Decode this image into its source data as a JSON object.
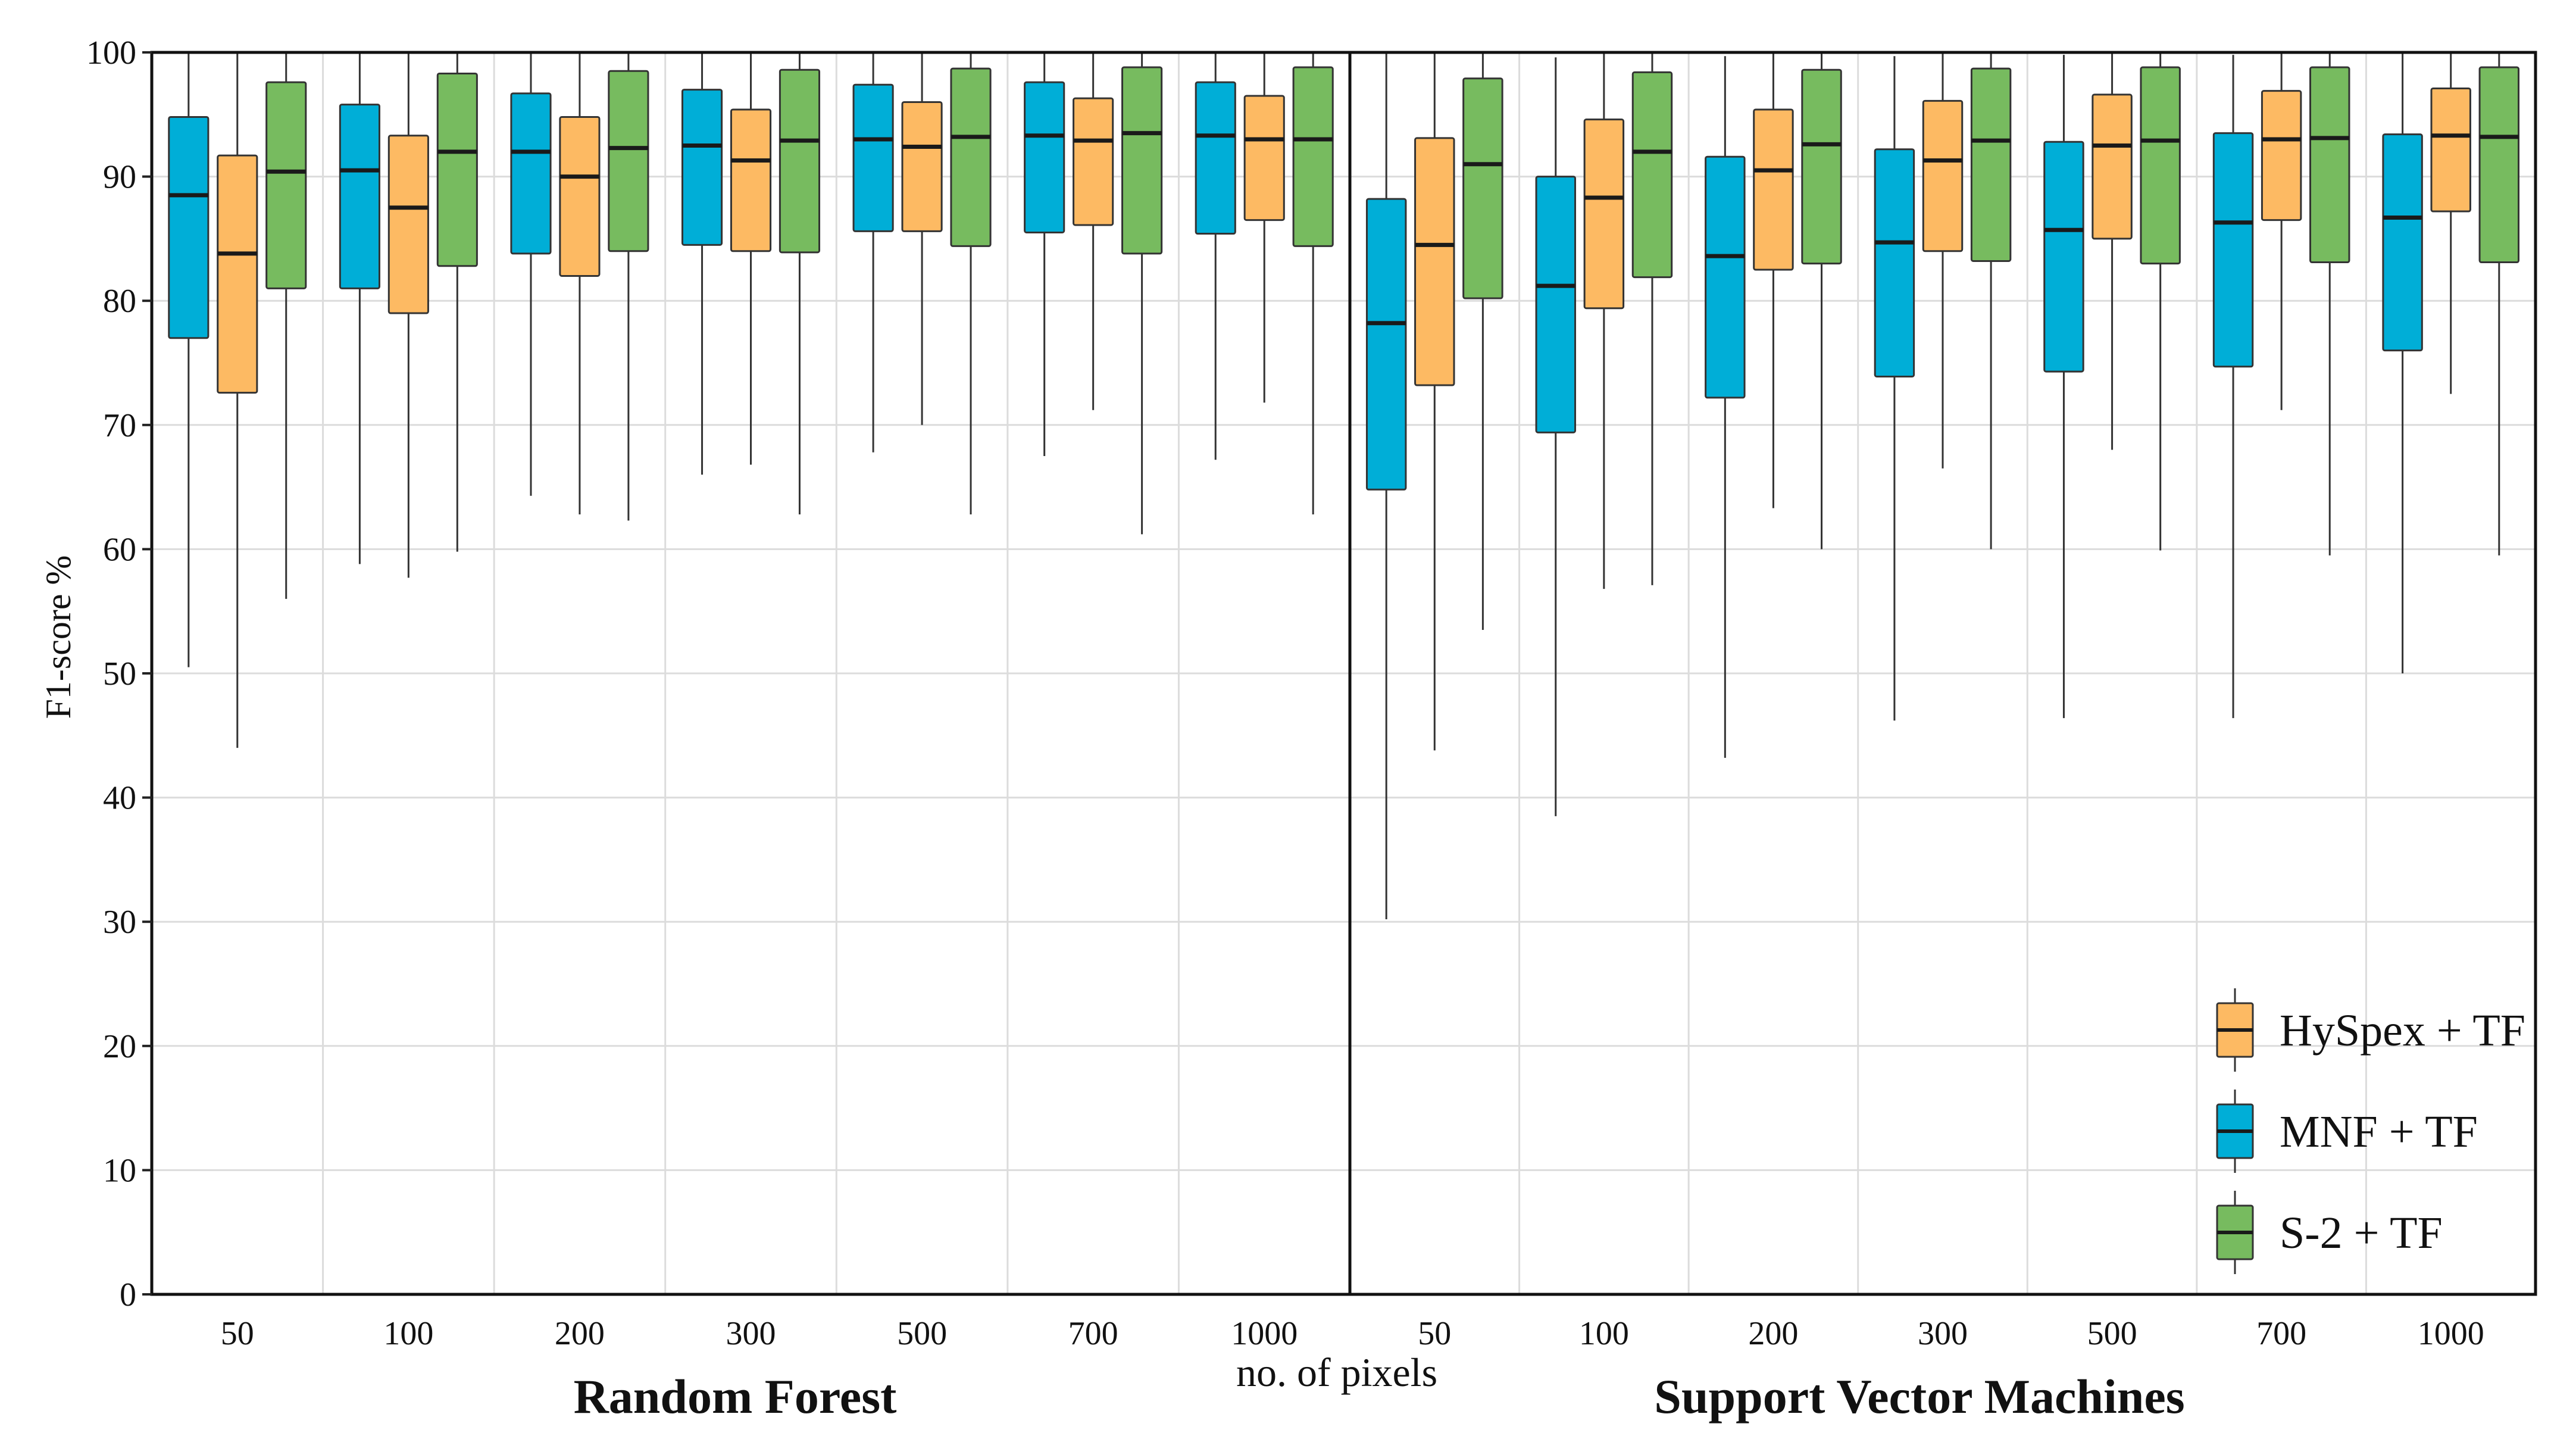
{
  "chart_data": {
    "type": "boxplot",
    "ylabel": "F1-score %",
    "xlabel": "no. of pixels",
    "ylim": [
      0,
      100
    ],
    "yticks": [
      "0",
      "10",
      "20",
      "30",
      "40",
      "50",
      "60",
      "70",
      "80",
      "90",
      "100"
    ],
    "grid": true,
    "legend_position": "bottom-right",
    "colors": {
      "HySpex + TF": "#FDBA63",
      "MNF + TF": "#00AED7",
      "S-2 + TF": "#77BB5F"
    },
    "legend": [
      "HySpex + TF",
      "MNF + TF",
      "S-2 + TF"
    ],
    "panels": [
      {
        "title": "Random Forest",
        "categories": [
          "50",
          "100",
          "200",
          "300",
          "500",
          "700",
          "1000"
        ],
        "series": [
          {
            "name": "MNF + TF",
            "boxes": [
              {
                "min": 50.5,
                "q1": 77.0,
                "median": 88.5,
                "q3": 94.8,
                "max": 100
              },
              {
                "min": 58.8,
                "q1": 81.0,
                "median": 90.5,
                "q3": 95.8,
                "max": 100
              },
              {
                "min": 64.3,
                "q1": 83.8,
                "median": 92.0,
                "q3": 96.7,
                "max": 100
              },
              {
                "min": 66.0,
                "q1": 84.5,
                "median": 92.5,
                "q3": 97.0,
                "max": 100
              },
              {
                "min": 67.8,
                "q1": 85.6,
                "median": 93.0,
                "q3": 97.4,
                "max": 100
              },
              {
                "min": 67.5,
                "q1": 85.5,
                "median": 93.3,
                "q3": 97.6,
                "max": 100
              },
              {
                "min": 67.2,
                "q1": 85.4,
                "median": 93.3,
                "q3": 97.6,
                "max": 100
              }
            ]
          },
          {
            "name": "HySpex + TF",
            "boxes": [
              {
                "min": 44.0,
                "q1": 72.6,
                "median": 83.8,
                "q3": 91.7,
                "max": 100
              },
              {
                "min": 57.7,
                "q1": 79.0,
                "median": 87.5,
                "q3": 93.3,
                "max": 100
              },
              {
                "min": 62.8,
                "q1": 82.0,
                "median": 90.0,
                "q3": 94.8,
                "max": 100
              },
              {
                "min": 66.8,
                "q1": 84.0,
                "median": 91.3,
                "q3": 95.4,
                "max": 100
              },
              {
                "min": 70.0,
                "q1": 85.6,
                "median": 92.4,
                "q3": 96.0,
                "max": 100
              },
              {
                "min": 71.2,
                "q1": 86.1,
                "median": 92.9,
                "q3": 96.3,
                "max": 100
              },
              {
                "min": 71.8,
                "q1": 86.5,
                "median": 93.0,
                "q3": 96.5,
                "max": 100
              }
            ]
          },
          {
            "name": "S-2 + TF",
            "boxes": [
              {
                "min": 56.0,
                "q1": 81.0,
                "median": 90.4,
                "q3": 97.6,
                "max": 100
              },
              {
                "min": 59.8,
                "q1": 82.8,
                "median": 92.0,
                "q3": 98.3,
                "max": 100
              },
              {
                "min": 62.3,
                "q1": 84.0,
                "median": 92.3,
                "q3": 98.5,
                "max": 100
              },
              {
                "min": 62.8,
                "q1": 83.9,
                "median": 92.9,
                "q3": 98.6,
                "max": 100
              },
              {
                "min": 62.8,
                "q1": 84.4,
                "median": 93.2,
                "q3": 98.7,
                "max": 100
              },
              {
                "min": 61.2,
                "q1": 83.8,
                "median": 93.5,
                "q3": 98.8,
                "max": 100
              },
              {
                "min": 62.8,
                "q1": 84.4,
                "median": 93.0,
                "q3": 98.8,
                "max": 100
              }
            ]
          }
        ]
      },
      {
        "title": "Support Vector Machines",
        "categories": [
          "50",
          "100",
          "200",
          "300",
          "500",
          "700",
          "1000"
        ],
        "series": [
          {
            "name": "MNF + TF",
            "boxes": [
              {
                "min": 30.2,
                "q1": 64.8,
                "median": 78.2,
                "q3": 88.2,
                "max": 100
              },
              {
                "min": 38.5,
                "q1": 69.4,
                "median": 81.2,
                "q3": 90.0,
                "max": 99.6
              },
              {
                "min": 43.2,
                "q1": 72.2,
                "median": 83.6,
                "q3": 91.6,
                "max": 99.7
              },
              {
                "min": 46.2,
                "q1": 73.9,
                "median": 84.7,
                "q3": 92.2,
                "max": 99.7
              },
              {
                "min": 46.4,
                "q1": 74.3,
                "median": 85.7,
                "q3": 92.8,
                "max": 99.8
              },
              {
                "min": 46.4,
                "q1": 74.7,
                "median": 86.3,
                "q3": 93.5,
                "max": 99.8
              },
              {
                "min": 50.0,
                "q1": 76.0,
                "median": 86.7,
                "q3": 93.4,
                "max": 99.9
              }
            ]
          },
          {
            "name": "HySpex + TF",
            "boxes": [
              {
                "min": 43.8,
                "q1": 73.2,
                "median": 84.5,
                "q3": 93.1,
                "max": 100
              },
              {
                "min": 56.8,
                "q1": 79.4,
                "median": 88.3,
                "q3": 94.6,
                "max": 100
              },
              {
                "min": 63.3,
                "q1": 82.5,
                "median": 90.5,
                "q3": 95.4,
                "max": 100
              },
              {
                "min": 66.5,
                "q1": 84.0,
                "median": 91.3,
                "q3": 96.1,
                "max": 100
              },
              {
                "min": 68.0,
                "q1": 85.0,
                "median": 92.5,
                "q3": 96.6,
                "max": 100
              },
              {
                "min": 71.2,
                "q1": 86.5,
                "median": 93.0,
                "q3": 96.9,
                "max": 100
              },
              {
                "min": 72.5,
                "q1": 87.2,
                "median": 93.3,
                "q3": 97.1,
                "max": 100
              }
            ]
          },
          {
            "name": "S-2 + TF",
            "boxes": [
              {
                "min": 53.5,
                "q1": 80.2,
                "median": 91.0,
                "q3": 97.9,
                "max": 100
              },
              {
                "min": 57.1,
                "q1": 81.9,
                "median": 92.0,
                "q3": 98.4,
                "max": 100
              },
              {
                "min": 60.0,
                "q1": 83.0,
                "median": 92.6,
                "q3": 98.6,
                "max": 100
              },
              {
                "min": 60.0,
                "q1": 83.2,
                "median": 92.9,
                "q3": 98.7,
                "max": 100
              },
              {
                "min": 59.9,
                "q1": 83.0,
                "median": 92.9,
                "q3": 98.8,
                "max": 100
              },
              {
                "min": 59.5,
                "q1": 83.1,
                "median": 93.1,
                "q3": 98.8,
                "max": 100
              },
              {
                "min": 59.5,
                "q1": 83.1,
                "median": 93.2,
                "q3": 98.8,
                "max": 100
              }
            ]
          }
        ]
      }
    ]
  }
}
